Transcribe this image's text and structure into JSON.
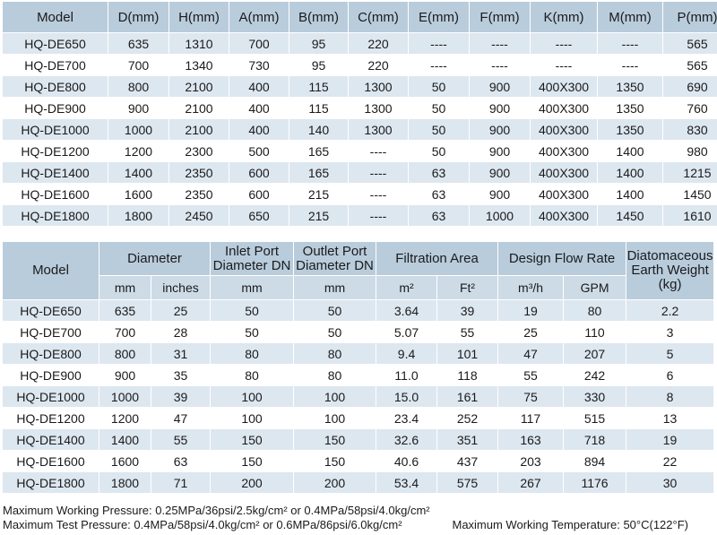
{
  "table1": {
    "headers": [
      "Model",
      "D(mm)",
      "H(mm)",
      "A(mm)",
      "B(mm)",
      "C(mm)",
      "E(mm)",
      "F(mm)",
      "K(mm)",
      "M(mm)",
      "P(mm)"
    ],
    "rows": [
      [
        "HQ-DE650",
        "635",
        "1310",
        "700",
        "95",
        "220",
        "----",
        "----",
        "----",
        "----",
        "565"
      ],
      [
        "HQ-DE700",
        "700",
        "1340",
        "730",
        "95",
        "220",
        "----",
        "----",
        "----",
        "----",
        "565"
      ],
      [
        "HQ-DE800",
        "800",
        "2100",
        "400",
        "115",
        "1300",
        "50",
        "900",
        "400X300",
        "1350",
        "690"
      ],
      [
        "HQ-DE900",
        "900",
        "2100",
        "400",
        "115",
        "1300",
        "50",
        "900",
        "400X300",
        "1350",
        "760"
      ],
      [
        "HQ-DE1000",
        "1000",
        "2100",
        "400",
        "140",
        "1300",
        "50",
        "900",
        "400X300",
        "1350",
        "830"
      ],
      [
        "HQ-DE1200",
        "1200",
        "2300",
        "500",
        "165",
        "----",
        "50",
        "900",
        "400X300",
        "1400",
        "980"
      ],
      [
        "HQ-DE1400",
        "1400",
        "2350",
        "600",
        "165",
        "----",
        "63",
        "900",
        "400X300",
        "1400",
        "1215"
      ],
      [
        "HQ-DE1600",
        "1600",
        "2350",
        "600",
        "215",
        "----",
        "63",
        "900",
        "400X300",
        "1400",
        "1450"
      ],
      [
        "HQ-DE1800",
        "1800",
        "2450",
        "650",
        "215",
        "----",
        "63",
        "1000",
        "400X300",
        "1450",
        "1610"
      ]
    ]
  },
  "table2": {
    "h_model": "Model",
    "h_diameter": "Diameter",
    "h_inlet": "Inlet Port Diameter DN",
    "h_outlet": "Outlet Port Diameter DN",
    "h_filtration": "Filtration Area",
    "h_flow": "Design Flow Rate",
    "h_weight": "Diatomaceous Earth Weight (kg)",
    "u_mm": "mm",
    "u_inches": "inches",
    "u_inlet_mm": "mm",
    "u_outlet_mm": "mm",
    "u_m2": "m²",
    "u_ft2": "Ft²",
    "u_m3h": "m³/h",
    "u_gpm": "GPM",
    "rows": [
      [
        "HQ-DE650",
        "635",
        "25",
        "50",
        "50",
        "3.64",
        "39",
        "19",
        "80",
        "2.2"
      ],
      [
        "HQ-DE700",
        "700",
        "28",
        "50",
        "50",
        "5.07",
        "55",
        "25",
        "110",
        "3"
      ],
      [
        "HQ-DE800",
        "800",
        "31",
        "80",
        "80",
        "9.4",
        "101",
        "47",
        "207",
        "5"
      ],
      [
        "HQ-DE900",
        "900",
        "35",
        "80",
        "80",
        "11.0",
        "118",
        "55",
        "242",
        "6"
      ],
      [
        "HQ-DE1000",
        "1000",
        "39",
        "100",
        "100",
        "15.0",
        "161",
        "75",
        "330",
        "8"
      ],
      [
        "HQ-DE1200",
        "1200",
        "47",
        "100",
        "100",
        "23.4",
        "252",
        "117",
        "515",
        "13"
      ],
      [
        "HQ-DE1400",
        "1400",
        "55",
        "150",
        "150",
        "32.6",
        "351",
        "163",
        "718",
        "19"
      ],
      [
        "HQ-DE1600",
        "1600",
        "63",
        "150",
        "150",
        "40.6",
        "437",
        "203",
        "894",
        "22"
      ],
      [
        "HQ-DE1800",
        "1800",
        "71",
        "200",
        "200",
        "53.4",
        "575",
        "267",
        "1176",
        "30"
      ]
    ]
  },
  "notes": {
    "working_pressure": "Maximum Working Pressure: 0.25MPa/36psi/2.5kg/cm² or 0.4MPa/58psi/4.0kg/cm²",
    "test_pressure": "Maximum Test Pressure: 0.4MPa/58psi/4.0kg/cm² or 0.6MPa/86psi/6.0kg/cm²",
    "working_temperature": "Maximum Working Temperature: 50°C(122°F)"
  }
}
